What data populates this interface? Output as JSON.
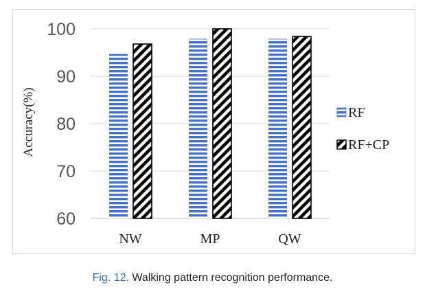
{
  "chart_data": {
    "type": "bar",
    "categories": [
      "NW",
      "MP",
      "QW"
    ],
    "series": [
      {
        "name": "RF",
        "values": [
          94.7,
          97.9,
          97.9
        ]
      },
      {
        "name": "RF+CP",
        "values": [
          96.8,
          100,
          98.4
        ]
      }
    ],
    "ylabel": "Accuracy(%)",
    "xlabel": "",
    "ylim": [
      60,
      100
    ],
    "yticks": [
      60,
      70,
      80,
      90,
      100
    ],
    "grid": true,
    "legend": "right",
    "colors": {
      "RF": "#4472c4",
      "RF+CP": "#000000"
    }
  },
  "caption": {
    "label": "Fig. 12.",
    "text": "Walking pattern recognition performance."
  }
}
